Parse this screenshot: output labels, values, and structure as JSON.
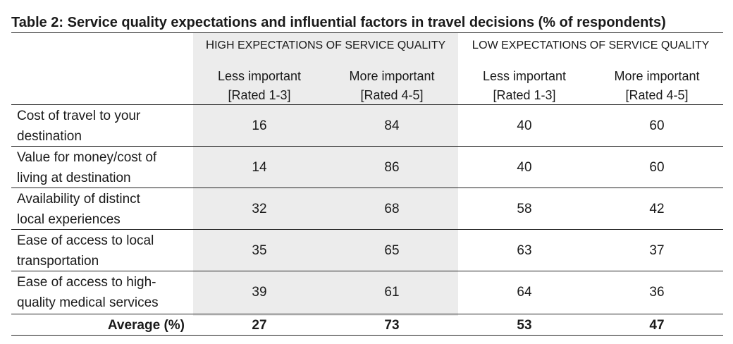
{
  "table": {
    "title": "Table 2: Service quality expectations and influential factors in travel decisions (% of respondents)",
    "groups": [
      {
        "first": "H",
        "rest": "IGH EXPECTATIONS OF SERVICE QUALITY"
      },
      {
        "first": "L",
        "rest": "OW EXPECTATIONS OF SERVICE QUALITY"
      }
    ],
    "subheaders": [
      {
        "line1": "Less important",
        "line2": "[Rated 1-3]"
      },
      {
        "line1": "More important",
        "line2": "[Rated 4-5]"
      },
      {
        "line1": "Less important",
        "line2": "[Rated 1-3]"
      },
      {
        "line1": "More important",
        "line2": "[Rated 4-5]"
      }
    ],
    "rows": [
      {
        "line1": "Cost of travel to your",
        "line2": "destination",
        "values": [
          "16",
          "84",
          "40",
          "60"
        ]
      },
      {
        "line1": "Value for money/cost of",
        "line2": "living at destination",
        "values": [
          "14",
          "86",
          "40",
          "60"
        ]
      },
      {
        "line1": "Availability of distinct",
        "line2": "local experiences",
        "values": [
          "32",
          "68",
          "58",
          "42"
        ]
      },
      {
        "line1": "Ease of access to local",
        "line2": "transportation",
        "values": [
          "35",
          "65",
          "63",
          "37"
        ]
      },
      {
        "line1": "Ease of access to high-",
        "line2": "quality medical services",
        "values": [
          "39",
          "61",
          "64",
          "36"
        ]
      }
    ],
    "average": {
      "label": "Average (%)",
      "values": [
        "27",
        "73",
        "53",
        "47"
      ]
    }
  }
}
